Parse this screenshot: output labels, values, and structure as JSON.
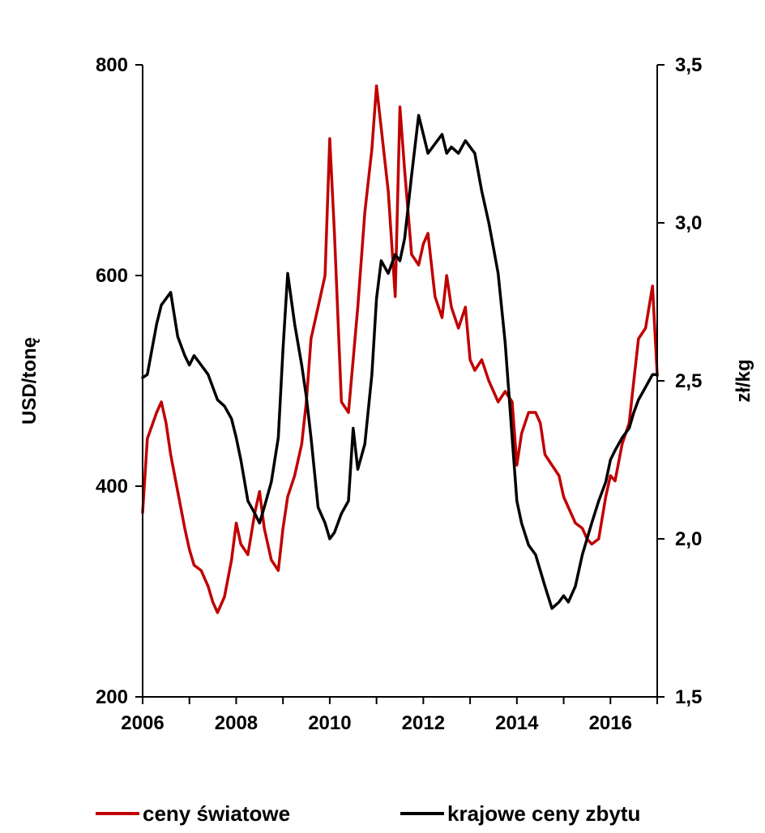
{
  "chart_data": {
    "type": "line",
    "title": "",
    "x_range": [
      2006,
      2017
    ],
    "x_ticks": [
      "2006",
      "2008",
      "2010",
      "2012",
      "2014",
      "2016"
    ],
    "y_left": {
      "label": "USD/tonę",
      "range": [
        200,
        800
      ],
      "ticks": [
        "200",
        "400",
        "600",
        "800"
      ]
    },
    "y_right": {
      "label": "zł/kg",
      "range": [
        1.5,
        3.5
      ],
      "ticks": [
        "1,5",
        "2,0",
        "2,5",
        "3,0",
        "3,5"
      ]
    },
    "grid": false,
    "legend_position": "bottom",
    "series": [
      {
        "name": "ceny światowe",
        "axis": "left",
        "color": "#c00000",
        "x": [
          2006.0,
          2006.1,
          2006.3,
          2006.4,
          2006.5,
          2006.6,
          2006.75,
          2006.9,
          2007.0,
          2007.1,
          2007.25,
          2007.4,
          2007.5,
          2007.6,
          2007.75,
          2007.9,
          2008.0,
          2008.1,
          2008.25,
          2008.4,
          2008.5,
          2008.6,
          2008.75,
          2008.9,
          2009.0,
          2009.1,
          2009.25,
          2009.4,
          2009.5,
          2009.6,
          2009.75,
          2009.9,
          2010.0,
          2010.1,
          2010.25,
          2010.4,
          2010.5,
          2010.6,
          2010.75,
          2010.9,
          2011.0,
          2011.1,
          2011.25,
          2011.4,
          2011.5,
          2011.6,
          2011.75,
          2011.9,
          2012.0,
          2012.1,
          2012.25,
          2012.4,
          2012.5,
          2012.6,
          2012.75,
          2012.9,
          2013.0,
          2013.1,
          2013.25,
          2013.4,
          2013.5,
          2013.6,
          2013.75,
          2013.9,
          2014.0,
          2014.1,
          2014.25,
          2014.4,
          2014.5,
          2014.6,
          2014.75,
          2014.9,
          2015.0,
          2015.1,
          2015.25,
          2015.4,
          2015.5,
          2015.6,
          2015.75,
          2015.9,
          2016.0,
          2016.1,
          2016.25,
          2016.4,
          2016.5,
          2016.6,
          2016.75,
          2016.9,
          2017.0
        ],
        "values": [
          375,
          445,
          470,
          480,
          460,
          430,
          395,
          360,
          340,
          325,
          320,
          305,
          290,
          280,
          295,
          330,
          365,
          345,
          335,
          375,
          395,
          360,
          330,
          320,
          360,
          390,
          410,
          440,
          480,
          540,
          570,
          600,
          730,
          640,
          480,
          470,
          520,
          570,
          660,
          720,
          780,
          740,
          680,
          580,
          760,
          700,
          620,
          610,
          630,
          640,
          580,
          560,
          600,
          570,
          550,
          570,
          520,
          510,
          520,
          500,
          490,
          480,
          490,
          480,
          420,
          450,
          470,
          470,
          460,
          430,
          420,
          410,
          390,
          380,
          365,
          360,
          350,
          345,
          350,
          390,
          410,
          405,
          440,
          460,
          500,
          540,
          550,
          590,
          505
        ]
      },
      {
        "name": "krajowe ceny zbytu",
        "axis": "right",
        "color": "#000000",
        "x": [
          2006.0,
          2006.1,
          2006.3,
          2006.4,
          2006.5,
          2006.6,
          2006.75,
          2006.9,
          2007.0,
          2007.1,
          2007.25,
          2007.4,
          2007.5,
          2007.6,
          2007.75,
          2007.9,
          2008.0,
          2008.1,
          2008.25,
          2008.4,
          2008.5,
          2008.6,
          2008.75,
          2008.9,
          2009.0,
          2009.1,
          2009.25,
          2009.4,
          2009.5,
          2009.6,
          2009.75,
          2009.9,
          2010.0,
          2010.1,
          2010.25,
          2010.4,
          2010.5,
          2010.6,
          2010.75,
          2010.9,
          2011.0,
          2011.1,
          2011.25,
          2011.4,
          2011.5,
          2011.6,
          2011.75,
          2011.9,
          2012.0,
          2012.1,
          2012.25,
          2012.4,
          2012.5,
          2012.6,
          2012.75,
          2012.9,
          2013.0,
          2013.1,
          2013.25,
          2013.4,
          2013.5,
          2013.6,
          2013.75,
          2013.9,
          2014.0,
          2014.1,
          2014.25,
          2014.4,
          2014.5,
          2014.6,
          2014.75,
          2014.9,
          2015.0,
          2015.1,
          2015.25,
          2015.4,
          2015.5,
          2015.6,
          2015.75,
          2015.9,
          2016.0,
          2016.1,
          2016.25,
          2016.4,
          2016.5,
          2016.6,
          2016.75,
          2016.9,
          2017.0
        ],
        "values": [
          2.51,
          2.52,
          2.68,
          2.74,
          2.76,
          2.78,
          2.64,
          2.58,
          2.55,
          2.58,
          2.55,
          2.52,
          2.48,
          2.44,
          2.42,
          2.38,
          2.32,
          2.25,
          2.12,
          2.08,
          2.05,
          2.1,
          2.18,
          2.32,
          2.6,
          2.84,
          2.68,
          2.55,
          2.45,
          2.32,
          2.1,
          2.05,
          2.0,
          2.02,
          2.08,
          2.12,
          2.35,
          2.22,
          2.3,
          2.52,
          2.76,
          2.88,
          2.84,
          2.9,
          2.88,
          2.95,
          3.15,
          3.34,
          3.28,
          3.22,
          3.25,
          3.28,
          3.22,
          3.24,
          3.22,
          3.26,
          3.24,
          3.22,
          3.1,
          3.0,
          2.92,
          2.84,
          2.62,
          2.32,
          2.12,
          2.05,
          1.98,
          1.95,
          1.9,
          1.85,
          1.78,
          1.8,
          1.82,
          1.8,
          1.85,
          1.95,
          2.0,
          2.05,
          2.12,
          2.18,
          2.25,
          2.28,
          2.32,
          2.35,
          2.4,
          2.44,
          2.48,
          2.52,
          2.52
        ]
      }
    ]
  }
}
